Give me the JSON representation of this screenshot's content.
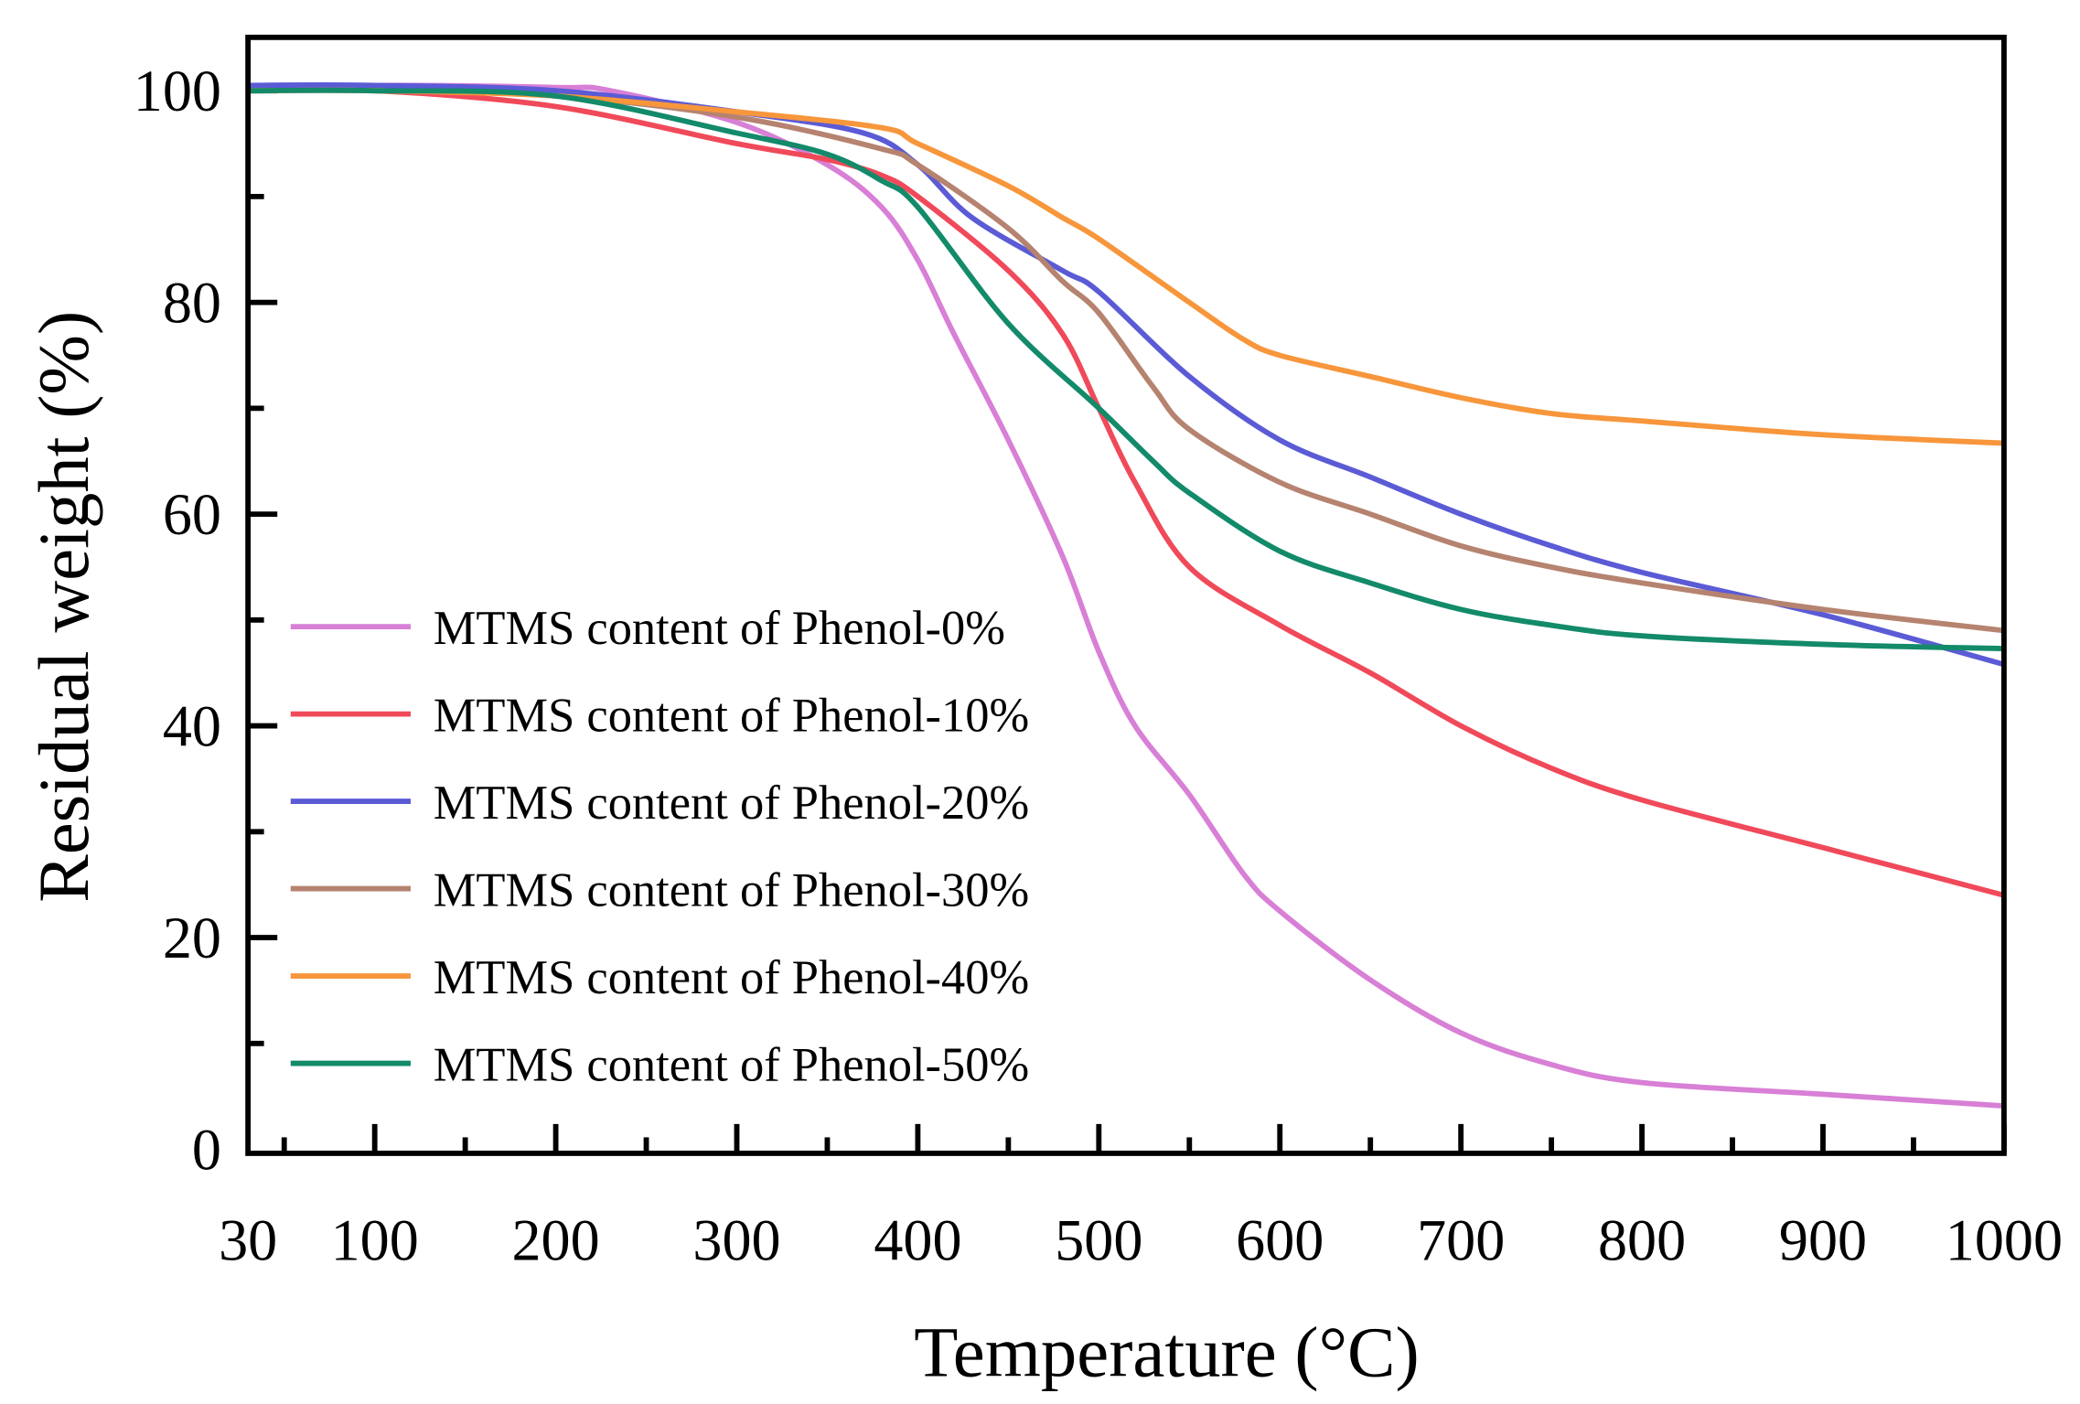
{
  "chart_data": {
    "type": "line",
    "title": "",
    "xlabel": "Temperature (°C)",
    "ylabel": "Residual weight (%)",
    "xlim": [
      30,
      1000
    ],
    "ylim": [
      0,
      104
    ],
    "xticks": [
      30,
      100,
      200,
      300,
      400,
      500,
      600,
      700,
      800,
      900,
      1000
    ],
    "xtick_labels": [
      "30",
      "100",
      "200",
      "300",
      "400",
      "500",
      "600",
      "700",
      "800",
      "900",
      "1000"
    ],
    "yticks": [
      0,
      20,
      40,
      60,
      80,
      100
    ],
    "ytick_labels": [
      "0",
      "20",
      "40",
      "60",
      "80",
      "100"
    ],
    "grid": false,
    "legend_position": "center-left",
    "series": [
      {
        "name": "MTMS content of Phenol-0%",
        "color": "#d87fd6",
        "x": [
          30,
          100,
          200,
          230,
          300,
          350,
          380,
          400,
          420,
          450,
          480,
          500,
          520,
          550,
          580,
          600,
          650,
          700,
          750,
          800,
          900,
          1000
        ],
        "y": [
          100,
          100.5,
          100.3,
          100,
          97,
          93,
          89,
          84,
          77,
          67,
          56,
          47,
          40,
          33.5,
          26,
          22.5,
          16,
          11,
          8,
          6.3,
          5.2,
          4.1
        ]
      },
      {
        "name": "MTMS content of Phenol-10%",
        "color": "#f04a5a",
        "x": [
          30,
          100,
          200,
          300,
          350,
          380,
          400,
          450,
          480,
          500,
          520,
          550,
          600,
          650,
          700,
          750,
          800,
          900,
          1000
        ],
        "y": [
          100,
          100,
          98.5,
          95,
          93.5,
          92,
          90,
          83,
          77,
          70,
          63,
          55,
          49.5,
          45,
          40,
          36,
          33,
          28.5,
          24
        ]
      },
      {
        "name": "MTMS content of Phenol-20%",
        "color": "#5b5bd6",
        "x": [
          30,
          100,
          200,
          300,
          370,
          400,
          430,
          480,
          500,
          550,
          600,
          650,
          700,
          750,
          800,
          900,
          1000
        ],
        "y": [
          100.5,
          100.5,
          100,
          98,
          96,
          93,
          88,
          83,
          81,
          73,
          67,
          63.5,
          60,
          57,
          54.5,
          50.5,
          45.8
        ]
      },
      {
        "name": "MTMS content of Phenol-30%",
        "color": "#b5836f",
        "x": [
          30,
          100,
          200,
          300,
          380,
          400,
          450,
          480,
          500,
          530,
          550,
          600,
          650,
          700,
          750,
          800,
          900,
          1000
        ],
        "y": [
          100,
          100,
          99.5,
          97.5,
          94.5,
          93,
          87,
          82,
          79,
          72,
          68,
          63,
          60,
          57,
          55,
          53.5,
          51,
          49
        ]
      },
      {
        "name": "MTMS content of Phenol-40%",
        "color": "#f7963b",
        "x": [
          30,
          100,
          200,
          300,
          380,
          400,
          450,
          480,
          500,
          550,
          580,
          600,
          650,
          700,
          750,
          800,
          900,
          1000
        ],
        "y": [
          100,
          100,
          99.5,
          98,
          96.5,
          95,
          91,
          88,
          86,
          80,
          76.5,
          75,
          73,
          71,
          69.5,
          68.8,
          67.5,
          66.7
        ]
      },
      {
        "name": "MTMS content of Phenol-50%",
        "color": "#138a6a",
        "x": [
          30,
          100,
          200,
          300,
          350,
          380,
          400,
          450,
          500,
          530,
          550,
          600,
          650,
          700,
          750,
          800,
          900,
          1000
        ],
        "y": [
          100,
          100,
          99.5,
          96,
          94,
          91.5,
          89,
          78,
          70,
          65,
          62,
          56.5,
          53.5,
          51,
          49.5,
          48.5,
          47.7,
          47.3
        ]
      }
    ]
  }
}
